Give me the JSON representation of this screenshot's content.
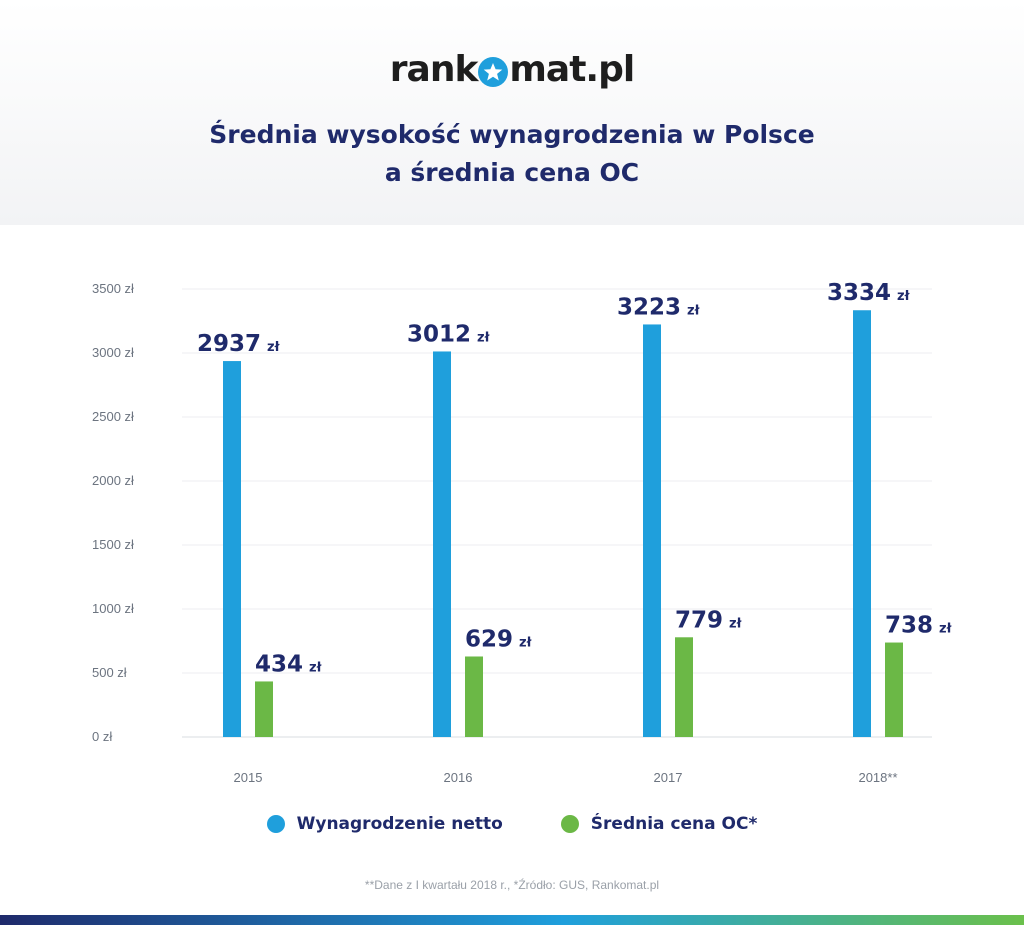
{
  "logo": {
    "part1": "rank",
    "part2": "mat.pl"
  },
  "title_line1": "Średnia wysokość wynagrodzenia w Polsce",
  "title_line2": "a średnia cena OC",
  "colors": {
    "salary": "#1f9fdc",
    "oc": "#6bb846",
    "dark": "#1f2a6b"
  },
  "chart_data": {
    "type": "bar",
    "categories": [
      "2015",
      "2016",
      "2017",
      "2018**"
    ],
    "series": [
      {
        "name": "Wynagrodzenie netto",
        "values": [
          2937,
          3012,
          3223,
          3334
        ],
        "labels": [
          "2937",
          "3012",
          "3223",
          "3334"
        ]
      },
      {
        "name": "Średnia cena OC*",
        "values": [
          434,
          629,
          779,
          738
        ],
        "labels": [
          "434",
          "629",
          "779",
          "738"
        ]
      }
    ],
    "unit": "zł",
    "ylim": [
      0,
      3500
    ],
    "yticks": [
      "0 zł",
      "500 zł",
      "1000 zł",
      "1500 zł",
      "2000 zł",
      "2500 zł",
      "3000 zł",
      "3500 zł"
    ],
    "grid": true,
    "legend": "bottom"
  },
  "legend": {
    "salary": "Wynagrodzenie netto",
    "oc": "Średnia cena OC*"
  },
  "footnote": "**Dane z I kwartału 2018 r.,  *Źródło: GUS, Rankomat.pl"
}
